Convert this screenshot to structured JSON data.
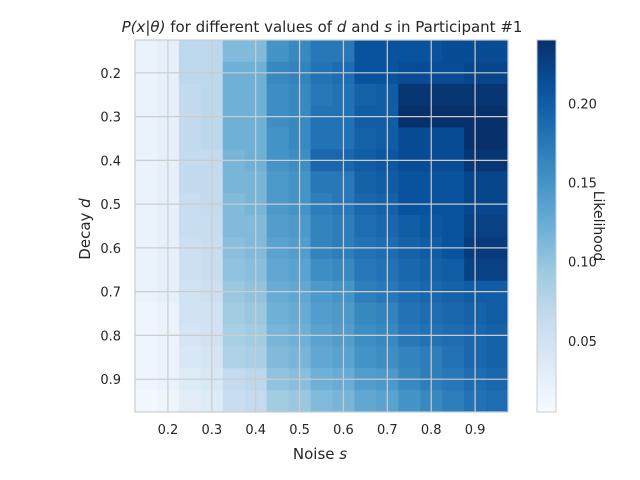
{
  "chart_data": {
    "type": "heatmap",
    "title_parts": [
      "P(x|θ)",
      "for different values of",
      "d",
      "and",
      "s",
      "in Participant #1"
    ],
    "xlabel_parts": [
      "Noise",
      "s"
    ],
    "ylabel_parts": [
      "Decay",
      "d"
    ],
    "x": [
      0.15,
      0.2,
      0.25,
      0.3,
      0.35,
      0.4,
      0.45,
      0.5,
      0.55,
      0.6,
      0.65,
      0.7,
      0.75,
      0.8,
      0.85,
      0.9,
      0.95
    ],
    "y": [
      0.15,
      0.2,
      0.25,
      0.3,
      0.35,
      0.4,
      0.45,
      0.5,
      0.55,
      0.6,
      0.65,
      0.7,
      0.75,
      0.8,
      0.85,
      0.9,
      0.95
    ],
    "x_ticks": [
      "0.2",
      "0.3",
      "0.4",
      "0.5",
      "0.6",
      "0.7",
      "0.8",
      "0.9"
    ],
    "y_ticks": [
      "0.2",
      "0.3",
      "0.4",
      "0.5",
      "0.6",
      "0.7",
      "0.8",
      "0.9"
    ],
    "x_tick_values": [
      0.2,
      0.3,
      0.4,
      0.5,
      0.6,
      0.7,
      0.8,
      0.9
    ],
    "y_tick_values": [
      0.2,
      0.3,
      0.4,
      0.5,
      0.6,
      0.7,
      0.8,
      0.9
    ],
    "values": [
      [
        0.02,
        0.025,
        0.07,
        0.07,
        0.11,
        0.11,
        0.15,
        0.16,
        0.175,
        0.175,
        0.21,
        0.21,
        0.21,
        0.21,
        0.215,
        0.215,
        0.215
      ],
      [
        0.02,
        0.025,
        0.07,
        0.07,
        0.12,
        0.12,
        0.16,
        0.165,
        0.18,
        0.185,
        0.21,
        0.21,
        0.215,
        0.215,
        0.215,
        0.22,
        0.22
      ],
      [
        0.02,
        0.025,
        0.065,
        0.07,
        0.12,
        0.12,
        0.155,
        0.16,
        0.175,
        0.18,
        0.195,
        0.2,
        0.235,
        0.235,
        0.235,
        0.235,
        0.235
      ],
      [
        0.02,
        0.025,
        0.065,
        0.07,
        0.12,
        0.12,
        0.155,
        0.16,
        0.18,
        0.18,
        0.2,
        0.2,
        0.24,
        0.24,
        0.24,
        0.24,
        0.24
      ],
      [
        0.02,
        0.025,
        0.065,
        0.07,
        0.12,
        0.12,
        0.15,
        0.16,
        0.18,
        0.18,
        0.195,
        0.2,
        0.215,
        0.215,
        0.215,
        0.24,
        0.24
      ],
      [
        0.02,
        0.025,
        0.065,
        0.065,
        0.115,
        0.12,
        0.15,
        0.155,
        0.19,
        0.19,
        0.2,
        0.205,
        0.215,
        0.215,
        0.215,
        0.235,
        0.235
      ],
      [
        0.02,
        0.025,
        0.065,
        0.065,
        0.115,
        0.115,
        0.145,
        0.15,
        0.175,
        0.175,
        0.195,
        0.2,
        0.21,
        0.21,
        0.21,
        0.22,
        0.22
      ],
      [
        0.02,
        0.025,
        0.06,
        0.065,
        0.11,
        0.115,
        0.145,
        0.15,
        0.17,
        0.175,
        0.19,
        0.195,
        0.21,
        0.21,
        0.21,
        0.22,
        0.22
      ],
      [
        0.02,
        0.025,
        0.06,
        0.06,
        0.11,
        0.11,
        0.14,
        0.145,
        0.165,
        0.17,
        0.185,
        0.19,
        0.2,
        0.205,
        0.21,
        0.225,
        0.225
      ],
      [
        0.02,
        0.025,
        0.055,
        0.06,
        0.105,
        0.11,
        0.135,
        0.14,
        0.165,
        0.17,
        0.18,
        0.185,
        0.195,
        0.2,
        0.21,
        0.23,
        0.23
      ],
      [
        0.02,
        0.025,
        0.055,
        0.06,
        0.1,
        0.105,
        0.13,
        0.135,
        0.155,
        0.16,
        0.175,
        0.18,
        0.19,
        0.195,
        0.2,
        0.225,
        0.225
      ],
      [
        0.02,
        0.025,
        0.05,
        0.055,
        0.095,
        0.1,
        0.125,
        0.13,
        0.145,
        0.15,
        0.17,
        0.175,
        0.185,
        0.19,
        0.195,
        0.2,
        0.2
      ],
      [
        0.015,
        0.02,
        0.05,
        0.05,
        0.09,
        0.095,
        0.12,
        0.125,
        0.14,
        0.145,
        0.16,
        0.165,
        0.18,
        0.185,
        0.19,
        0.195,
        0.2
      ],
      [
        0.015,
        0.02,
        0.045,
        0.05,
        0.085,
        0.09,
        0.115,
        0.12,
        0.135,
        0.14,
        0.155,
        0.16,
        0.175,
        0.18,
        0.185,
        0.19,
        0.195
      ],
      [
        0.015,
        0.02,
        0.04,
        0.045,
        0.08,
        0.085,
        0.11,
        0.115,
        0.13,
        0.135,
        0.15,
        0.155,
        0.165,
        0.17,
        0.18,
        0.19,
        0.195
      ],
      [
        0.015,
        0.02,
        0.035,
        0.04,
        0.065,
        0.07,
        0.1,
        0.105,
        0.12,
        0.125,
        0.14,
        0.145,
        0.16,
        0.17,
        0.175,
        0.185,
        0.19
      ],
      [
        0.01,
        0.015,
        0.03,
        0.035,
        0.06,
        0.065,
        0.09,
        0.095,
        0.11,
        0.115,
        0.13,
        0.135,
        0.15,
        0.16,
        0.17,
        0.18,
        0.185
      ]
    ],
    "colorbar": {
      "label": "Likelihood",
      "ticks": [
        "0.05",
        "0.10",
        "0.15",
        "0.20"
      ],
      "tick_values": [
        0.05,
        0.1,
        0.15,
        0.2
      ],
      "range": [
        0.005,
        0.24
      ],
      "colormap": "Blues"
    },
    "grid": true
  }
}
